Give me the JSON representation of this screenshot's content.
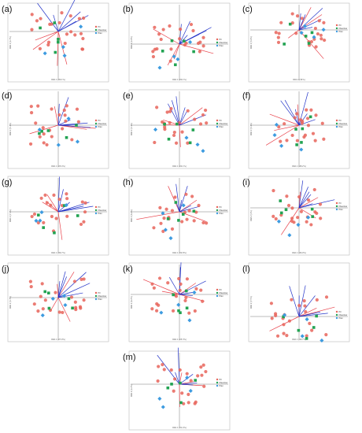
{
  "figure": {
    "legend_labels": [
      "PC",
      "Meadow",
      "Plan"
    ],
    "colors": {
      "group1": "#e8645a",
      "group2": "#22a352",
      "group3": "#3d9be0",
      "loading_env": "#e8414a",
      "loading_taxa": "#2233c8",
      "axis": "#555555"
    }
  },
  "chart_data": [
    {
      "panel": "(a)",
      "type": "scatter",
      "xlabel": "RDA 1 (30.1%)",
      "ylabel": "RDA 2 (4.7%)"
    },
    {
      "panel": "(b)",
      "type": "scatter",
      "xlabel": "RDA 1 (20.1%)",
      "ylabel": "RDA 2 (4.8%)"
    },
    {
      "panel": "(c)",
      "type": "scatter",
      "xlabel": "RDA 1 (34%)",
      "ylabel": "RDA 2 (3.6%)"
    },
    {
      "panel": "(d)",
      "type": "scatter",
      "xlabel": "RDA 1 (25.4%)",
      "ylabel": "RDA 2 (5.4%)"
    },
    {
      "panel": "(e)",
      "type": "scatter",
      "xlabel": "RDA 1 (22.1%)",
      "ylabel": "RDA 2 (3.1%)"
    },
    {
      "panel": "(f)",
      "type": "scatter",
      "xlabel": "RDA 1 (28.2%)",
      "ylabel": "RDA 2 (3.4%)"
    },
    {
      "panel": "(g)",
      "type": "scatter",
      "xlabel": "RDA 1 (36.7%)",
      "ylabel": "RDA 2 (7.1%)"
    },
    {
      "panel": "(h)",
      "type": "scatter",
      "xlabel": "RDA 1 (32.8%)",
      "ylabel": "RDA 2 (6.2%)"
    },
    {
      "panel": "(i)",
      "type": "scatter",
      "xlabel": "RDA 1 (26.9%)",
      "ylabel": "RDA 2 (4%)"
    },
    {
      "panel": "(j)",
      "type": "scatter",
      "xlabel": "RDA 1 (27.9%)",
      "ylabel": "RDA 2 (3.7%)"
    },
    {
      "panel": "(k)",
      "type": "scatter",
      "xlabel": "RDA 1 (25.3%)",
      "ylabel": "RDA 2 (6.2%)"
    },
    {
      "panel": "(l)",
      "type": "scatter",
      "xlabel": "RDA 1 (18.7%)",
      "ylabel": "RDA 2 (7.5%)"
    },
    {
      "panel": "(m)",
      "type": "scatter",
      "xlabel": "RDA 1 (31.4%)",
      "ylabel": "RDA 2 (4.2%)"
    }
  ]
}
